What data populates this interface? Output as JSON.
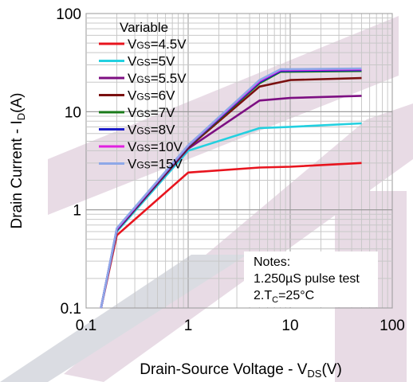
{
  "chart_data": {
    "type": "line",
    "x_scale": "log",
    "y_scale": "log",
    "xlim": [
      0.1,
      100
    ],
    "ylim": [
      0.1,
      100
    ],
    "grid": true,
    "xlabel_main": "Drain-Source Voltage - V",
    "xlabel_sub": "DS",
    "xlabel_suffix": "(V)",
    "ylabel_main": "Drain Current - I",
    "ylabel_sub": "D",
    "ylabel_suffix": "(A)",
    "x_ticks": [
      {
        "value": 0.1,
        "label": "0.1"
      },
      {
        "value": 1,
        "label": "1"
      },
      {
        "value": 10,
        "label": "10"
      },
      {
        "value": 100,
        "label": "100"
      }
    ],
    "y_ticks": [
      {
        "value": 0.1,
        "label": "0.1"
      },
      {
        "value": 1,
        "label": "1"
      },
      {
        "value": 10,
        "label": "10"
      },
      {
        "value": 100,
        "label": "100"
      }
    ],
    "legend_title": "Variable",
    "legend_position": "top-left",
    "series": [
      {
        "name": "VGS=4.5V",
        "prefix": "V",
        "sub": "GS",
        "suffix": "=4.5V",
        "color": "#e8141e",
        "x": [
          0.14,
          0.2,
          1,
          5,
          10,
          50
        ],
        "y": [
          0.1,
          0.55,
          2.4,
          2.7,
          2.75,
          3.0
        ]
      },
      {
        "name": "VGS=5V",
        "prefix": "V",
        "sub": "GS",
        "suffix": "=5V",
        "color": "#22d0e0",
        "x": [
          0.14,
          0.2,
          1,
          5,
          10,
          50
        ],
        "y": [
          0.1,
          0.6,
          4.0,
          6.8,
          7.0,
          7.6
        ]
      },
      {
        "name": "VGS=5.5V",
        "prefix": "V",
        "sub": "GS",
        "suffix": "=5.5V",
        "color": "#7d0f82",
        "x": [
          0.14,
          0.2,
          1,
          5,
          10,
          50
        ],
        "y": [
          0.1,
          0.62,
          4.2,
          13.0,
          13.8,
          14.5
        ]
      },
      {
        "name": "VGS=6V",
        "prefix": "V",
        "sub": "GS",
        "suffix": "=6V",
        "color": "#7a1010",
        "x": [
          0.14,
          0.2,
          1,
          5,
          10,
          50
        ],
        "y": [
          0.1,
          0.62,
          4.3,
          18.0,
          21.0,
          22.0
        ]
      },
      {
        "name": "VGS=7V",
        "prefix": "V",
        "sub": "GS",
        "suffix": "=7V",
        "color": "#1a7a1a",
        "x": [
          0.14,
          0.2,
          1,
          5,
          8,
          50
        ],
        "y": [
          0.1,
          0.63,
          4.4,
          19.5,
          25.5,
          26.0
        ]
      },
      {
        "name": "VGS=8V",
        "prefix": "V",
        "sub": "GS",
        "suffix": "=8V",
        "color": "#1c1cc8",
        "x": [
          0.14,
          0.2,
          1,
          5,
          8,
          50
        ],
        "y": [
          0.1,
          0.63,
          4.45,
          20.0,
          26.0,
          26.5
        ]
      },
      {
        "name": "VGS=10V",
        "prefix": "V",
        "sub": "GS",
        "suffix": "=10V",
        "color": "#e020e0",
        "x": [
          0.14,
          0.2,
          1,
          5,
          8,
          50
        ],
        "y": [
          0.1,
          0.64,
          4.5,
          20.5,
          26.5,
          27.0
        ]
      },
      {
        "name": "VGS=15V",
        "prefix": "V",
        "sub": "GS",
        "suffix": "=15V",
        "color": "#8ea8e8",
        "x": [
          0.14,
          0.2,
          1,
          5,
          8,
          50
        ],
        "y": [
          0.1,
          0.65,
          4.55,
          21.0,
          27.0,
          27.5
        ]
      }
    ],
    "notes": {
      "title": "Notes:",
      "line1": "1.250µS pulse test",
      "line2_prefix": "2.T",
      "line2_sub": "C",
      "line2_suffix": "=25°C"
    }
  }
}
